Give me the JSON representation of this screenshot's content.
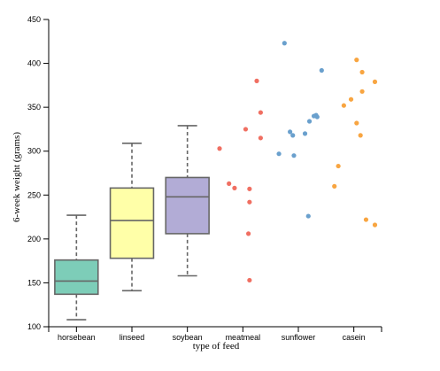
{
  "chart_data": {
    "type": "box-and-scatter",
    "xlabel": "type of feed",
    "ylabel": "6-week weight (grams)",
    "ylim": [
      100,
      450
    ],
    "yticks": [
      100,
      150,
      200,
      250,
      300,
      350,
      400,
      450
    ],
    "categories": [
      "horsebean",
      "linseed",
      "soybean",
      "meatmeal",
      "sunflower",
      "casein"
    ],
    "boxes": [
      {
        "category": "horsebean",
        "min": 108,
        "q1": 137,
        "median": 152,
        "q3": 176,
        "max": 227,
        "color": "#7dcdb8"
      },
      {
        "category": "linseed",
        "min": 141,
        "q1": 178,
        "median": 221,
        "q3": 258,
        "max": 309,
        "color": "#ffffa8"
      },
      {
        "category": "soybean",
        "min": 158,
        "q1": 206,
        "median": 248,
        "q3": 270,
        "max": 329,
        "color": "#b2acd6"
      }
    ],
    "scatter": [
      {
        "category": "meatmeal",
        "color": "#f06f62",
        "points": [
          {
            "x": -0.42,
            "y": 303
          },
          {
            "x": -0.25,
            "y": 263
          },
          {
            "x": -0.15,
            "y": 258
          },
          {
            "x": 0.05,
            "y": 325
          },
          {
            "x": 0.12,
            "y": 257
          },
          {
            "x": 0.12,
            "y": 242
          },
          {
            "x": 0.1,
            "y": 206
          },
          {
            "x": 0.12,
            "y": 153
          },
          {
            "x": 0.25,
            "y": 380
          },
          {
            "x": 0.32,
            "y": 344
          },
          {
            "x": 0.32,
            "y": 315
          }
        ]
      },
      {
        "category": "sunflower",
        "color": "#6aa0cd",
        "points": [
          {
            "x": -0.35,
            "y": 297
          },
          {
            "x": -0.25,
            "y": 423
          },
          {
            "x": -0.15,
            "y": 322
          },
          {
            "x": -0.1,
            "y": 318
          },
          {
            "x": -0.08,
            "y": 295
          },
          {
            "x": 0.12,
            "y": 320
          },
          {
            "x": 0.2,
            "y": 334
          },
          {
            "x": 0.28,
            "y": 340
          },
          {
            "x": 0.32,
            "y": 341
          },
          {
            "x": 0.34,
            "y": 339
          },
          {
            "x": 0.18,
            "y": 226
          },
          {
            "x": 0.42,
            "y": 392
          }
        ]
      },
      {
        "category": "casein",
        "color": "#f8a541",
        "points": [
          {
            "x": -0.35,
            "y": 260
          },
          {
            "x": -0.28,
            "y": 283
          },
          {
            "x": -0.18,
            "y": 352
          },
          {
            "x": -0.05,
            "y": 359
          },
          {
            "x": 0.05,
            "y": 404
          },
          {
            "x": 0.05,
            "y": 332
          },
          {
            "x": 0.12,
            "y": 318
          },
          {
            "x": 0.15,
            "y": 390
          },
          {
            "x": 0.15,
            "y": 368
          },
          {
            "x": 0.22,
            "y": 222
          },
          {
            "x": 0.38,
            "y": 379
          },
          {
            "x": 0.38,
            "y": 216
          }
        ]
      }
    ],
    "grid": false,
    "legend": "none"
  }
}
